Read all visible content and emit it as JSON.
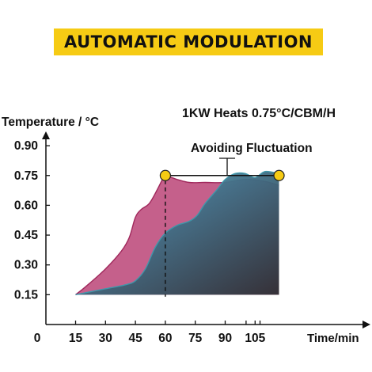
{
  "banner": {
    "title": "AUTOMATIC MODULATION",
    "bg_color": "#f6cb14"
  },
  "chart_data": {
    "type": "area",
    "subtitle": "1KW Heats 0.75°C/CBM/H",
    "annotation": "Avoiding Fluctuation",
    "ylabel": "Temperature / °C",
    "xlabel": "Time/min",
    "xlim": [
      0,
      115
    ],
    "ylim": [
      0.1,
      0.95
    ],
    "x_ticks": [
      0,
      15,
      30,
      45,
      60,
      75,
      90,
      105
    ],
    "y_ticks": [
      0.15,
      0.3,
      0.45,
      0.6,
      0.75,
      0.9
    ],
    "y_tick_labels": [
      "0.15",
      "0.30",
      "0.45",
      "0.60",
      "0.75",
      "0.90"
    ],
    "series": [
      {
        "color": "#c0457a",
        "x": [
          15,
          20,
          30,
          38,
          42,
          45,
          48,
          52,
          56,
          59,
          60,
          66,
          72,
          80,
          90,
          100,
          110,
          117
        ],
        "y": [
          0.15,
          0.19,
          0.28,
          0.37,
          0.44,
          0.54,
          0.58,
          0.61,
          0.68,
          0.74,
          0.75,
          0.73,
          0.715,
          0.715,
          0.715,
          0.73,
          0.72,
          0.7
        ]
      },
      {
        "color": "#5aaebe",
        "x": [
          15,
          20,
          30,
          40,
          45,
          50,
          55,
          60,
          66,
          72,
          76,
          80,
          86,
          90,
          95,
          100,
          105,
          110,
          117
        ],
        "y": [
          0.15,
          0.16,
          0.18,
          0.2,
          0.22,
          0.28,
          0.39,
          0.46,
          0.5,
          0.52,
          0.55,
          0.61,
          0.68,
          0.73,
          0.76,
          0.76,
          0.74,
          0.77,
          0.76
        ]
      }
    ],
    "markers": [
      {
        "x": 60,
        "y": 0.75
      },
      {
        "x": 117,
        "y": 0.75
      }
    ],
    "reference_line": {
      "y": 0.75,
      "x_start": 60,
      "x_end": 117
    },
    "dashed_drop": {
      "x": 60
    },
    "marker_color": "#f6cb14"
  }
}
